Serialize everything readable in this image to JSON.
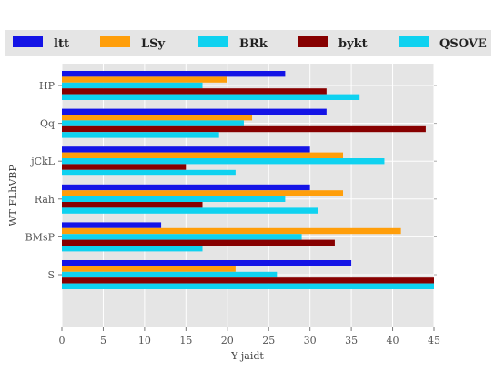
{
  "chart_data": {
    "type": "bar",
    "orientation": "horizontal",
    "categories": [
      "HP",
      "Qq",
      "jCkL",
      "Rah",
      "BMsP",
      "S"
    ],
    "series": [
      {
        "name": "ltt",
        "color": "#1414e6",
        "values": [
          27,
          32,
          30,
          30,
          12,
          35
        ]
      },
      {
        "name": "LSy",
        "color": "#ff9e0a",
        "values": [
          20,
          23,
          34,
          34,
          41,
          21
        ]
      },
      {
        "name": "BRk",
        "color": "#0fd2f0",
        "values": [
          17,
          22,
          39,
          27,
          29,
          26
        ]
      },
      {
        "name": "bykt",
        "color": "#870000",
        "values": [
          32,
          44,
          15,
          17,
          33,
          45
        ]
      },
      {
        "name": "QSOVE",
        "color": "#0fd2f0",
        "values": [
          36,
          19,
          21,
          31,
          17,
          45
        ]
      }
    ],
    "xlabel": "Y jaidt",
    "ylabel": "WT FLhVBP",
    "xlim": [
      0,
      45
    ],
    "xticks": [
      0,
      5,
      10,
      15,
      20,
      25,
      30,
      35,
      40,
      45
    ],
    "grid": true,
    "legend_position": "top"
  }
}
